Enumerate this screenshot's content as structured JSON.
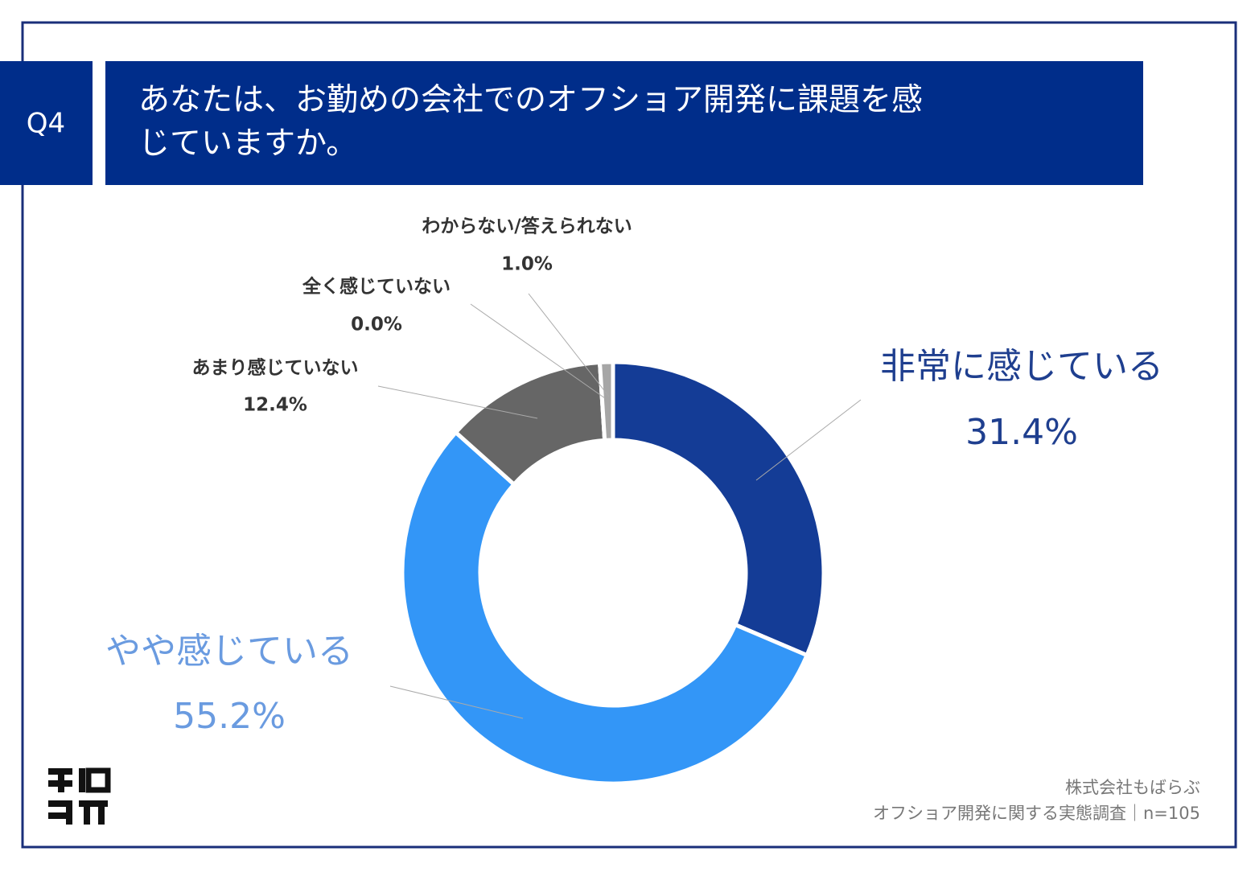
{
  "badge": "Q4",
  "chart_data": {
    "type": "donut",
    "title": "あなたは、お勤めの会社でのオフショア開発に課題を感じていますか。",
    "categories": [
      "非常に感じている",
      "やや感じている",
      "あまり感じていない",
      "全く感じていない",
      "わからない/答えられない"
    ],
    "values": [
      31.4,
      55.2,
      12.4,
      0.0,
      1.0
    ],
    "value_labels": [
      "31.4%",
      "55.2%",
      "12.4%",
      "0.0%",
      "1.0%"
    ],
    "colors": [
      "#143c96",
      "#3396f7",
      "#666666",
      "#bdbdbd",
      "#a6a6a6"
    ]
  },
  "source": [
    "株式会社もばらぶ",
    "オフショア開発に関する実態調査｜n=105"
  ]
}
